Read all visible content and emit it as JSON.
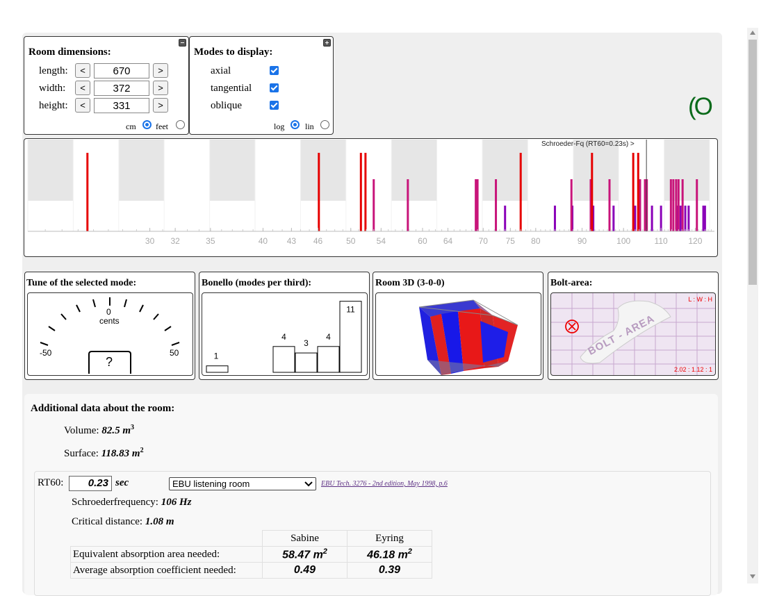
{
  "room": {
    "title": "Room dimensions:",
    "length_label": "length:",
    "length_value": "670",
    "width_label": "width:",
    "width_value": "372",
    "height_label": "height:",
    "height_value": "331",
    "dec": "<",
    "inc": ">",
    "unit_cm": "cm",
    "unit_feet": "feet"
  },
  "modes": {
    "title": "Modes to display:",
    "axial": "axial",
    "tangential": "tangential",
    "oblique": "oblique",
    "scale_log": "log",
    "scale_lin": "lin"
  },
  "logo_text": "(O",
  "spectrum": {
    "schroeder_label": "Schroeder-Fq (RT60=0.23s) >",
    "ticks": [
      "30",
      "32",
      "35",
      "40",
      "43",
      "46",
      "50",
      "54",
      "60",
      "64",
      "70",
      "75",
      "80",
      "90",
      "100",
      "110",
      "120"
    ]
  },
  "chart_data": {
    "type": "bar",
    "xlabel": "",
    "ylabel": "",
    "x_scale": "log",
    "xlim": [
      22,
      126
    ],
    "schroeder_hz": 106,
    "axial_color": "#e60000",
    "tangential_color": "#c8147a",
    "oblique_color": "#8a00b8",
    "axial_hz": [
      25.6,
      46.1,
      51.3,
      51.9,
      77.0,
      92.3,
      102.5,
      103.8
    ],
    "tangential_hz": [
      53.0,
      57.8,
      68.7,
      69.0,
      72.3,
      87.6,
      92.0,
      96.5,
      104.3,
      105.6,
      106.1,
      112.8,
      113.5,
      114.3,
      115.0,
      116.2,
      120.5
    ],
    "oblique_hz": [
      74.0,
      84.0,
      87.8,
      92.6,
      97.5,
      103.0,
      107.5,
      110.0,
      114.6,
      115.6,
      117.0,
      118.0,
      122.5,
      123.0
    ]
  },
  "tuner": {
    "title": "Tune of the selected mode:",
    "zero": "0",
    "cents": "cents",
    "min": "-50",
    "max": "50",
    "value": "?"
  },
  "bonello": {
    "title": "Bonello (modes per third):",
    "chart_data": {
      "type": "bar",
      "values": [
        1,
        0,
        0,
        4,
        3,
        4,
        11
      ],
      "labels": [
        "1",
        "",
        "",
        "4",
        "3",
        "4",
        "11"
      ]
    }
  },
  "room3d": {
    "title": "Room 3D (3-0-0)"
  },
  "bolt": {
    "title": "Bolt-area:",
    "lwh": "L : W : H",
    "ratio": "2.02 : 1.12 : 1",
    "watermark": "BOLT - AREA"
  },
  "additional": {
    "title": "Additional data about the room:",
    "volume_label": "Volume:",
    "volume_value": "82.5 m",
    "volume_exp": "3",
    "surface_label": "Surface:",
    "surface_value": "118.83 m",
    "surface_exp": "2"
  },
  "rt60": {
    "label": "RT60:",
    "value": "0.23",
    "unit": "sec",
    "preset": "EBU listening room",
    "ref": "EBU Tech. 3276 - 2nd edition, May 1998, p.6",
    "schroeder_label": "Schroederfrequency:",
    "schroeder_value": "106 Hz",
    "critical_label": "Critical distance:",
    "critical_value": "1.08 m"
  },
  "absorption": {
    "col_sabine": "Sabine",
    "col_eyring": "Eyring",
    "row1_label": "Equivalent absorption area needed:",
    "row1_sabine": "58.47 m",
    "row1_eyring": "46.18 m",
    "exp": "2",
    "row2_label": "Average absorption coefficient needed:",
    "row2_sabine": "0.49",
    "row2_eyring": "0.39"
  }
}
